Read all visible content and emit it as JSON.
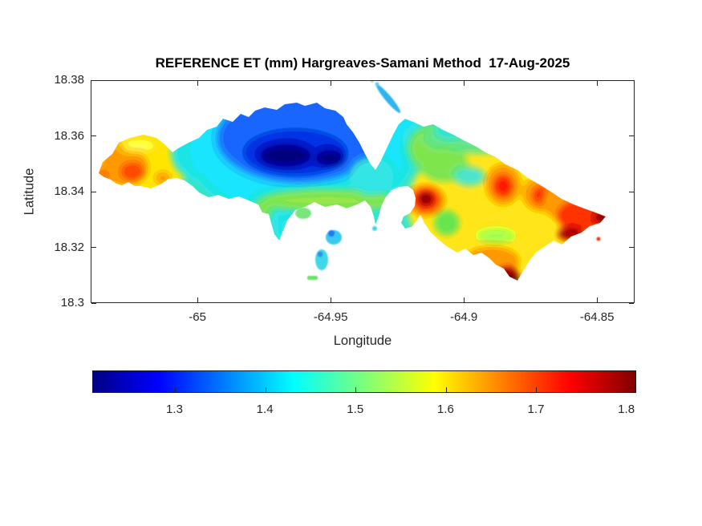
{
  "figure": {
    "background": "#ffffff",
    "axis_color": "#262626",
    "title_color": "#000000"
  },
  "chart_data": {
    "type": "filled-contour-map",
    "title": "REFERENCE ET (mm) Hargreaves-Samani Method  17-Aug-2025",
    "variable": "Reference evapotranspiration ET (mm)",
    "method": "Hargreaves-Samani",
    "date_shown": "17-Aug-2025",
    "xlabel": "Longitude",
    "ylabel": "Latitude",
    "grid": false,
    "legend": "horizontal colorbar below plot",
    "colormap": "jet",
    "x_axis": {
      "label": "Longitude",
      "range": [
        -65.0401,
        -64.8359
      ],
      "ticks": [
        {
          "value": -65,
          "label": "-65"
        },
        {
          "value": -64.95,
          "label": "-64.95"
        },
        {
          "value": -64.9,
          "label": "-64.9"
        },
        {
          "value": -64.85,
          "label": "-64.85"
        }
      ]
    },
    "y_axis": {
      "label": "Latitude",
      "range": [
        18.3,
        18.38
      ],
      "ticks": [
        {
          "value": 18.38,
          "label": "18.38"
        },
        {
          "value": 18.36,
          "label": "18.36"
        },
        {
          "value": 18.34,
          "label": "18.34"
        },
        {
          "value": 18.32,
          "label": "18.32"
        },
        {
          "value": 18.3,
          "label": "18.3"
        }
      ]
    },
    "colorbar": {
      "orientation": "horizontal",
      "range": [
        1.209,
        1.811
      ],
      "ticks": [
        {
          "value": 1.3,
          "label": "1.3"
        },
        {
          "value": 1.4,
          "label": "1.4"
        },
        {
          "value": 1.5,
          "label": "1.5"
        },
        {
          "value": 1.6,
          "label": "1.6"
        },
        {
          "value": 1.7,
          "label": "1.7"
        },
        {
          "value": 1.8,
          "label": "1.8"
        }
      ],
      "stops": [
        {
          "color": "#000084",
          "pos": 0
        },
        {
          "color": "#0000ff",
          "pos": 0.12
        },
        {
          "color": "#00ffff",
          "pos": 0.37
        },
        {
          "color": "#7dff7a",
          "pos": 0.5
        },
        {
          "color": "#ffff00",
          "pos": 0.63
        },
        {
          "color": "#ff0000",
          "pos": 0.88
        },
        {
          "color": "#800000",
          "pos": 1
        }
      ]
    },
    "map_features": [
      {
        "area": "west peninsula (~ -65.03 to -65.00, lat 18.345-18.36)",
        "et_mm": "1.55-1.75 (yellow-orange, small red-orange core)"
      },
      {
        "area": "north-central highlands (~ -64.99 to -64.93, lat 18.34-18.365)",
        "et_mm": "1.21-1.35 (blue with navy minimum cores)"
      },
      {
        "area": "north-shore bay notch (~ -64.925, 18.36)",
        "et_mm": "no data (white indent in coastline)"
      },
      {
        "area": "central transition band south of blue zone",
        "et_mm": "1.40-1.55 (cyan to green bands)"
      },
      {
        "area": "intense hot spot (~ -64.912, 18.337)",
        "et_mm": "~1.81 (dark maroon spot ringed by red/orange)"
      },
      {
        "area": "eastern half (~ -64.90 to -64.84)",
        "et_mm": "1.55-1.81 (yellow base, several orange-red cores, dark red at east tip and southeast shore)"
      },
      {
        "area": "southern lobe (~ -64.905, 18.315-18.33)",
        "et_mm": "1.50-1.65 (yellow with light-green pocket, orange-red rim)"
      },
      {
        "area": "small offshore cays to the south (~ -64.955 to -64.94, 18.31-18.325)",
        "et_mm": "1.35-1.50 (cyan/green fragments)"
      },
      {
        "area": "tiny cyan streak northeast of the bay notch (~ -64.9, 18.365-18.375)",
        "et_mm": "1.35-1.45"
      }
    ]
  }
}
